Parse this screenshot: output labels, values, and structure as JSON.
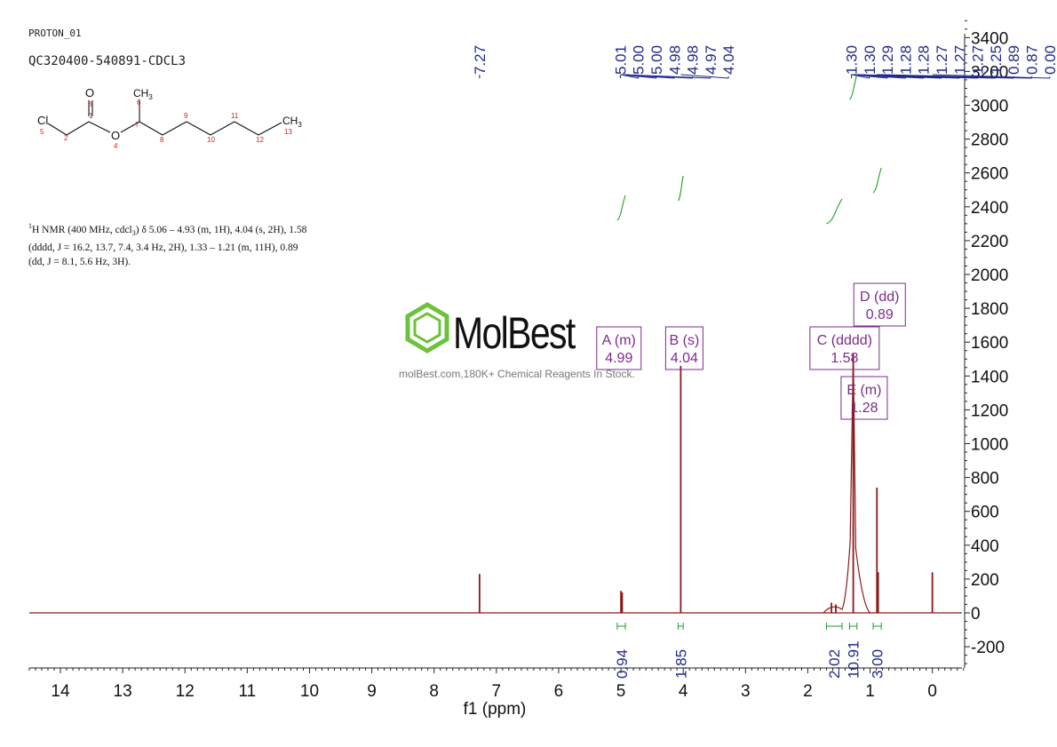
{
  "header": {
    "experiment": "PROTON_01",
    "sample": "QC320400-540891-CDCL3"
  },
  "structure": {
    "carbonyl_o": "O",
    "carbonyl_num": "3",
    "c1": "1",
    "cl": "Cl",
    "cl_num": "5",
    "c2": "2",
    "ester_o": "O",
    "ester_o_num": "4",
    "c7": "7",
    "ch3_top": "CH",
    "ch3_top_sub": "3",
    "c6": "6",
    "c8": "8",
    "c9": "9",
    "c10": "10",
    "c11": "11",
    "c12": "12",
    "c13": "13",
    "ch3_end": "CH",
    "ch3_end_sub": "3"
  },
  "summary": {
    "sup": "1",
    "line1": "H NMR (400 MHz, cdcl",
    "line1_sub": "3",
    "line1_rest": ") δ 5.06 – 4.93 (m, 1H), 4.04 (s, 2H), 1.58",
    "line2": "(dddd, J = 16.2, 13.7, 7.4, 3.4 Hz, 2H), 1.33 – 1.21 (m, 11H), 0.89",
    "line3": "(dd, J = 8.1, 5.6 Hz, 3H)."
  },
  "watermark": {
    "brand": "MolBest",
    "tagline": "molBest.com,180K+ Chemical Reagents In Stock."
  },
  "colors": {
    "spectrum": "#8b1a1a",
    "peak_labels": "#1f2a8a",
    "integral": "#1e9b2e",
    "multiplet": "#7d2b8c",
    "logo_green": "#6cc23a",
    "axis": "#222222"
  },
  "chart_data": {
    "type": "line",
    "title": "",
    "xlabel": "f1 (ppm)",
    "ylabel": "",
    "xlim": [
      14.5,
      -0.5
    ],
    "ylim": [
      -330,
      3550
    ],
    "x_ticks": [
      14,
      13,
      12,
      11,
      10,
      9,
      8,
      7,
      6,
      5,
      4,
      3,
      2,
      1,
      0
    ],
    "y_ticks": [
      3400,
      3200,
      3000,
      2800,
      2600,
      2400,
      2200,
      2000,
      1800,
      1600,
      1400,
      1200,
      1000,
      800,
      600,
      400,
      200,
      0,
      -200
    ],
    "peak_labels": [
      {
        "ppm": 7.27,
        "label": "7.27"
      },
      {
        "ppm": 5.01,
        "label": "5.01"
      },
      {
        "ppm": 5.0,
        "label": "5.00"
      },
      {
        "ppm": 5.0,
        "label": "5.00"
      },
      {
        "ppm": 4.98,
        "label": "4.98"
      },
      {
        "ppm": 4.98,
        "label": "4.98"
      },
      {
        "ppm": 4.97,
        "label": "4.97"
      },
      {
        "ppm": 4.04,
        "label": "4.04"
      },
      {
        "ppm": 1.3,
        "label": "1.30"
      },
      {
        "ppm": 1.3,
        "label": "1.30"
      },
      {
        "ppm": 1.29,
        "label": "1.29"
      },
      {
        "ppm": 1.28,
        "label": "1.28"
      },
      {
        "ppm": 1.28,
        "label": "1.28"
      },
      {
        "ppm": 1.27,
        "label": "1.27"
      },
      {
        "ppm": 1.27,
        "label": "1.27"
      },
      {
        "ppm": 1.27,
        "label": "1.27"
      },
      {
        "ppm": 1.25,
        "label": "1.25"
      },
      {
        "ppm": 0.89,
        "label": "0.89"
      },
      {
        "ppm": 0.87,
        "label": "0.87"
      },
      {
        "ppm": 0.0,
        "label": "0.00"
      }
    ],
    "peaks": [
      {
        "ppm": 7.27,
        "height": 230
      },
      {
        "ppm": 5.0,
        "height": 130
      },
      {
        "ppm": 4.98,
        "height": 120
      },
      {
        "ppm": 4.04,
        "height": 1460
      },
      {
        "ppm": 1.62,
        "height": 60
      },
      {
        "ppm": 1.55,
        "height": 50
      },
      {
        "ppm": 1.27,
        "height": 1530
      },
      {
        "ppm": 0.89,
        "height": 740
      },
      {
        "ppm": 0.87,
        "height": 240
      },
      {
        "ppm": 0.0,
        "height": 240
      }
    ],
    "multiplets": [
      {
        "id": "A",
        "type": "m",
        "ppm": 4.99,
        "name": "A (m)",
        "value": "4.99"
      },
      {
        "id": "B",
        "type": "s",
        "ppm": 4.04,
        "name": "B (s)",
        "value": "4.04"
      },
      {
        "id": "C",
        "type": "dddd",
        "ppm": 1.58,
        "name": "C (dddd)",
        "value": "1.58"
      },
      {
        "id": "D",
        "type": "dd",
        "ppm": 0.89,
        "name": "D (dd)",
        "value": "0.89"
      },
      {
        "id": "E",
        "type": "m",
        "ppm": 1.28,
        "name": "E (m)",
        "value": "1.28"
      }
    ],
    "integrals": [
      {
        "from": 5.06,
        "to": 4.93,
        "ppm": 4.99,
        "value": "0.94"
      },
      {
        "from": 4.08,
        "to": 4.0,
        "ppm": 4.04,
        "value": "1.85"
      },
      {
        "from": 1.7,
        "to": 1.45,
        "ppm": 1.58,
        "value": "2.02"
      },
      {
        "from": 1.33,
        "to": 1.21,
        "ppm": 1.27,
        "value": "10.91"
      },
      {
        "from": 0.95,
        "to": 0.82,
        "ppm": 0.89,
        "value": "3.00"
      }
    ]
  }
}
